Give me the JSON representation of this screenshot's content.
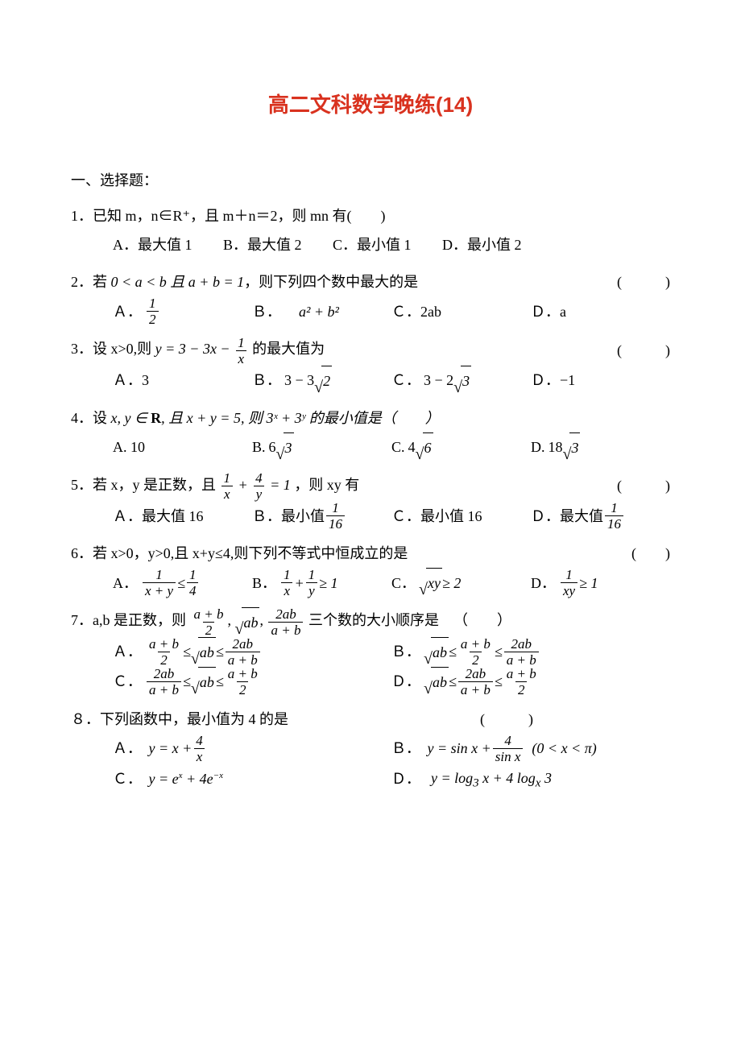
{
  "title_text": "高二文科数学晚练(14)",
  "title_color": "#d9321f",
  "section": "一、选择题：",
  "blank4": "(　　)",
  "blank6": "(　　　)",
  "q1": {
    "stem": "1．已知 m，n∈R⁺，且 m＋n＝2，则 mn 有(　　)",
    "A": "A．最大值 1",
    "B": "B．最大值 2",
    "C": "C．最小值 1",
    "D": "D．最小值 2"
  },
  "q2": {
    "num": "2．",
    "lead": "若",
    "cond": " 0 < a < b 且 a + b = 1",
    "tail": "，则下列四个数中最大的是",
    "A": "Ａ．",
    "Av": "1",
    "Ad": "2",
    "B": "Ｂ． ",
    "Bv": "a² + b²",
    "C": "Ｃ．2ab",
    "D": "Ｄ．a"
  },
  "q3": {
    "num": "3．",
    "lead": "设 x>0,则",
    "mid": " 的最大值为",
    "A": "Ａ．3",
    "B": "Ｂ．",
    "C": "Ｃ．",
    "D": "Ｄ．−1"
  },
  "q4": {
    "num": "4．",
    "lead": "设 ",
    "var": "x, y ∈ ",
    "R": "R",
    "cond": ",  且 x + y = 5,  则 3ˣ + 3ʸ 的最小值是（　　）",
    "A": "A. 10",
    "B": "B. ",
    "C": "C. ",
    "D": "D. "
  },
  "q5": {
    "num": "5．",
    "lead": "若 x，y 是正数，且",
    "tail": "，则 xy 有",
    "A": "Ａ．最大值 16",
    "B": "Ｂ．最小值",
    "C": "Ｃ．最小值 16",
    "D": "Ｄ．最大值"
  },
  "q6": {
    "num": "6．",
    "lead": "若 x>0，y>0,且 x+y≤4,则下列不等式中恒成立的是",
    "A": "A．",
    "B": "B．",
    "C": "C．",
    "D": "D．"
  },
  "q7": {
    "num": "7．",
    "lead": "a,b 是正数，则",
    "tail": " 三个数的大小顺序是 （　　）",
    "A": "Ａ．",
    "B": "Ｂ．",
    "C": "Ｃ．",
    "D": "Ｄ．"
  },
  "q8": {
    "num": "８．",
    "lead": "下列函数中，最小值为 4 的是",
    "A": "Ａ．",
    "B": "Ｂ．",
    "C": "Ｃ．",
    "D": "Ｄ．"
  }
}
